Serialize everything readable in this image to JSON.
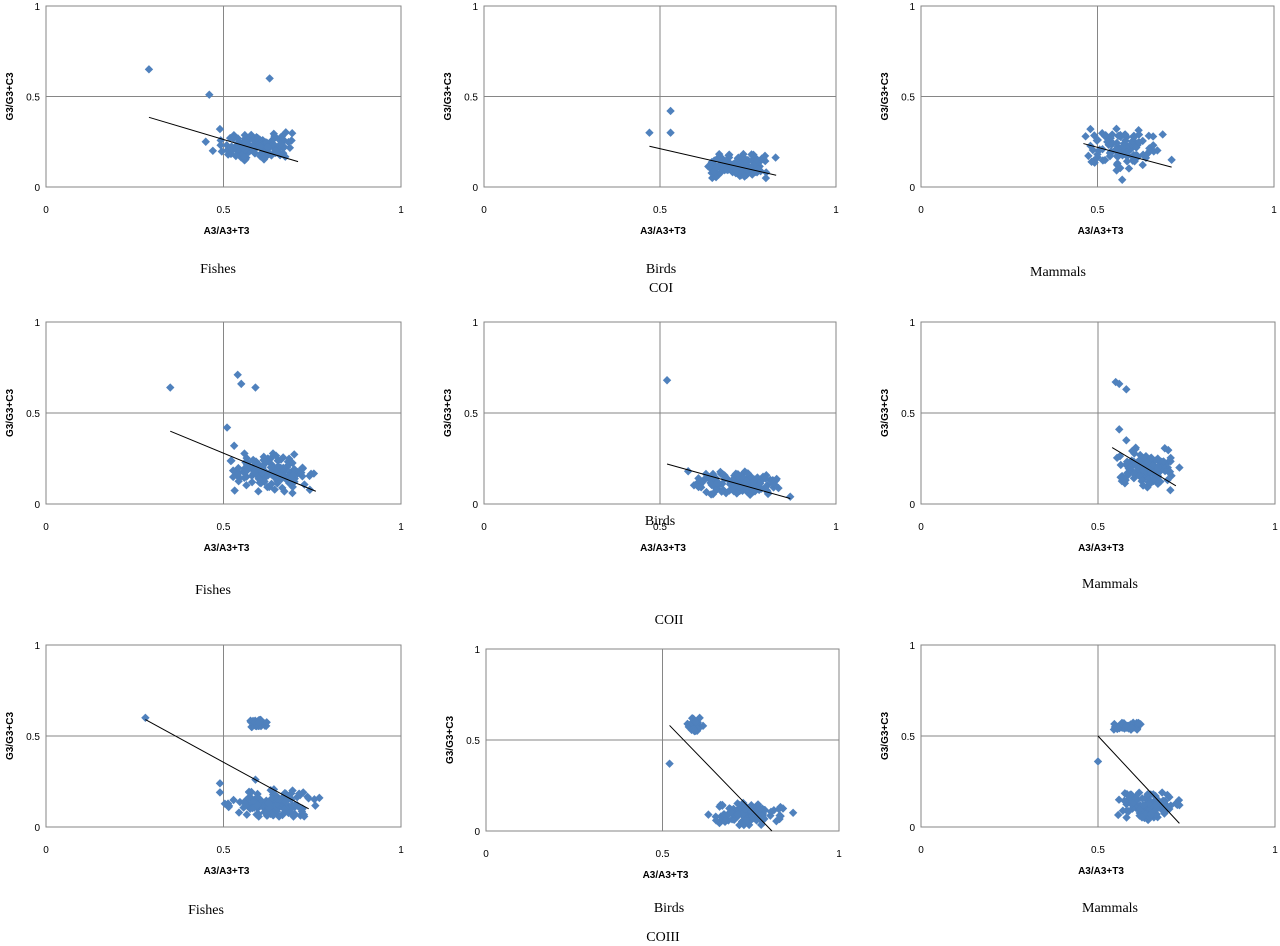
{
  "colors": {
    "marker": "#4f81bd",
    "trend": "#000000",
    "grid": "#868686"
  },
  "chart_data": [
    {
      "type": "scatter",
      "caption": "Fishes",
      "group": "COI",
      "xlabel": "A3/A3+T3",
      "ylabel": "G3/G3+C3",
      "xlim": [
        0,
        1
      ],
      "ylim": [
        0,
        1
      ],
      "xticks": [
        "0",
        "0.5",
        "1"
      ],
      "yticks": [
        "0",
        "0.5",
        "1"
      ],
      "trendline": {
        "x": [
          0.29,
          0.71
        ],
        "y": [
          0.385,
          0.14
        ]
      },
      "outliers": [
        [
          0.29,
          0.65
        ],
        [
          0.46,
          0.51
        ],
        [
          0.63,
          0.6
        ],
        [
          0.45,
          0.25
        ],
        [
          0.49,
          0.32
        ],
        [
          0.47,
          0.2
        ]
      ],
      "cluster": {
        "x": [
          0.48,
          0.71
        ],
        "y": [
          0.14,
          0.31
        ],
        "n": 140
      }
    },
    {
      "type": "scatter",
      "caption": "Birds",
      "group": "COI",
      "xlabel": "A3/A3+T3",
      "ylabel": "G3/G3+C3",
      "xlim": [
        0,
        1
      ],
      "ylim": [
        0,
        1
      ],
      "xticks": [
        "0",
        "0.5",
        "1"
      ],
      "yticks": [
        "0",
        "0.5",
        "1"
      ],
      "trendline": {
        "x": [
          0.47,
          0.83
        ],
        "y": [
          0.225,
          0.065
        ]
      },
      "outliers": [
        [
          0.47,
          0.3
        ],
        [
          0.53,
          0.42
        ],
        [
          0.53,
          0.3
        ]
      ],
      "cluster": {
        "x": [
          0.62,
          0.83
        ],
        "y": [
          0.04,
          0.19
        ],
        "n": 140
      }
    },
    {
      "type": "scatter",
      "caption": "Mammals",
      "group": "COI",
      "xlabel": "A3/A3+T3",
      "ylabel": "G3/G3+C3",
      "xlim": [
        0,
        1
      ],
      "ylim": [
        0,
        1
      ],
      "xticks": [
        "0",
        "0.5",
        "1"
      ],
      "yticks": [
        "0",
        "0.5",
        "1"
      ],
      "trendline": {
        "x": [
          0.46,
          0.71
        ],
        "y": [
          0.24,
          0.11
        ]
      },
      "outliers": [
        [
          0.48,
          0.32
        ],
        [
          0.57,
          0.04
        ],
        [
          0.71,
          0.15
        ]
      ],
      "cluster": {
        "x": [
          0.46,
          0.69
        ],
        "y": [
          0.08,
          0.34
        ],
        "n": 110
      }
    },
    {
      "type": "scatter",
      "caption": "Fishes",
      "group": "COII",
      "xlabel": "A3/A3+T3",
      "ylabel": "G3/G3+C3",
      "xlim": [
        0,
        1
      ],
      "ylim": [
        0,
        1
      ],
      "xticks": [
        "0",
        "0.5",
        "1"
      ],
      "yticks": [
        "0",
        "0.5",
        "1"
      ],
      "trendline": {
        "x": [
          0.35,
          0.76
        ],
        "y": [
          0.4,
          0.07
        ]
      },
      "outliers": [
        [
          0.35,
          0.64
        ],
        [
          0.54,
          0.71
        ],
        [
          0.55,
          0.66
        ],
        [
          0.59,
          0.64
        ],
        [
          0.51,
          0.42
        ],
        [
          0.53,
          0.32
        ]
      ],
      "cluster": {
        "x": [
          0.51,
          0.76
        ],
        "y": [
          0.05,
          0.29
        ],
        "n": 150
      }
    },
    {
      "type": "scatter",
      "caption": "Birds",
      "group": "COII",
      "xlabel": "A3/A3+T3",
      "ylabel": "G3/G3+C3",
      "xlim": [
        0,
        1
      ],
      "ylim": [
        0,
        1
      ],
      "xticks": [
        "0",
        "0.5",
        "1"
      ],
      "yticks": [
        "0",
        "0.5",
        "1"
      ],
      "trendline": {
        "x": [
          0.52,
          0.87
        ],
        "y": [
          0.22,
          0.03
        ]
      },
      "outliers": [
        [
          0.52,
          0.68
        ],
        [
          0.58,
          0.18
        ],
        [
          0.87,
          0.04
        ]
      ],
      "cluster": {
        "x": [
          0.59,
          0.86
        ],
        "y": [
          0.04,
          0.19
        ],
        "n": 140
      }
    },
    {
      "type": "scatter",
      "caption": "Mammals",
      "group": "COII",
      "xlabel": "A3/A3+T3",
      "ylabel": "G3/G3+C3",
      "xlim": [
        0,
        1
      ],
      "ylim": [
        0,
        1
      ],
      "xticks": [
        "0",
        "0.5",
        "1"
      ],
      "yticks": [
        "0",
        "0.5",
        "1"
      ],
      "trendline": {
        "x": [
          0.54,
          0.72
        ],
        "y": [
          0.31,
          0.1
        ]
      },
      "outliers": [
        [
          0.55,
          0.67
        ],
        [
          0.56,
          0.66
        ],
        [
          0.58,
          0.63
        ],
        [
          0.56,
          0.41
        ],
        [
          0.58,
          0.35
        ],
        [
          0.73,
          0.2
        ]
      ],
      "cluster": {
        "x": [
          0.53,
          0.72
        ],
        "y": [
          0.07,
          0.33
        ],
        "n": 130
      }
    },
    {
      "type": "scatter",
      "caption": "Fishes",
      "group": "COIII",
      "xlabel": "A3/A3+T3",
      "ylabel": "G3/G3+C3",
      "xlim": [
        0,
        1
      ],
      "ylim": [
        0,
        1
      ],
      "xticks": [
        "0",
        "0.5",
        "1"
      ],
      "yticks": [
        "0",
        "0.5",
        "1"
      ],
      "trendline": {
        "x": [
          0.28,
          0.74
        ],
        "y": [
          0.59,
          0.1
        ]
      },
      "outliers": [
        [
          0.28,
          0.6
        ],
        [
          0.49,
          0.24
        ],
        [
          0.49,
          0.19
        ],
        [
          0.59,
          0.26
        ],
        [
          0.77,
          0.16
        ]
      ],
      "cluster": {
        "x": [
          0.49,
          0.77
        ],
        "y": [
          0.04,
          0.22
        ],
        "n": 130
      },
      "cluster2": {
        "x": [
          0.57,
          0.63
        ],
        "y": [
          0.54,
          0.6
        ],
        "n": 45
      }
    },
    {
      "type": "scatter",
      "caption": "Birds",
      "group": "COIII",
      "xlabel": "A3/A3+T3",
      "ylabel": "G3/G3+C3",
      "xlim": [
        0,
        1
      ],
      "ylim": [
        0,
        1
      ],
      "xticks": [
        "0",
        "0.5",
        "1"
      ],
      "yticks": [
        "0",
        "0.5",
        "1"
      ],
      "trendline": {
        "x": [
          0.52,
          0.81
        ],
        "y": [
          0.58,
          0.0
        ]
      },
      "outliers": [
        [
          0.52,
          0.37
        ],
        [
          0.87,
          0.1
        ],
        [
          0.63,
          0.09
        ]
      ],
      "cluster": {
        "x": [
          0.63,
          0.85
        ],
        "y": [
          0.02,
          0.17
        ],
        "n": 120
      },
      "cluster2": {
        "x": [
          0.57,
          0.62
        ],
        "y": [
          0.54,
          0.63
        ],
        "n": 40
      }
    },
    {
      "type": "scatter",
      "caption": "Mammals",
      "group": "COIII",
      "xlabel": "A3/A3+T3",
      "ylabel": "G3/G3+C3",
      "xlim": [
        0,
        1
      ],
      "ylim": [
        0,
        1
      ],
      "xticks": [
        "0",
        "0.5",
        "1"
      ],
      "yticks": [
        "0",
        "0.5",
        "1"
      ],
      "trendline": {
        "x": [
          0.5,
          0.73
        ],
        "y": [
          0.5,
          0.02
        ]
      },
      "outliers": [
        [
          0.5,
          0.36
        ],
        [
          0.73,
          0.12
        ]
      ],
      "cluster": {
        "x": [
          0.55,
          0.74
        ],
        "y": [
          0.03,
          0.2
        ],
        "n": 110
      },
      "cluster2": {
        "x": [
          0.54,
          0.63
        ],
        "y": [
          0.53,
          0.58
        ],
        "n": 45
      }
    }
  ],
  "group_titles": [
    "COI",
    "COII",
    "COIII"
  ]
}
